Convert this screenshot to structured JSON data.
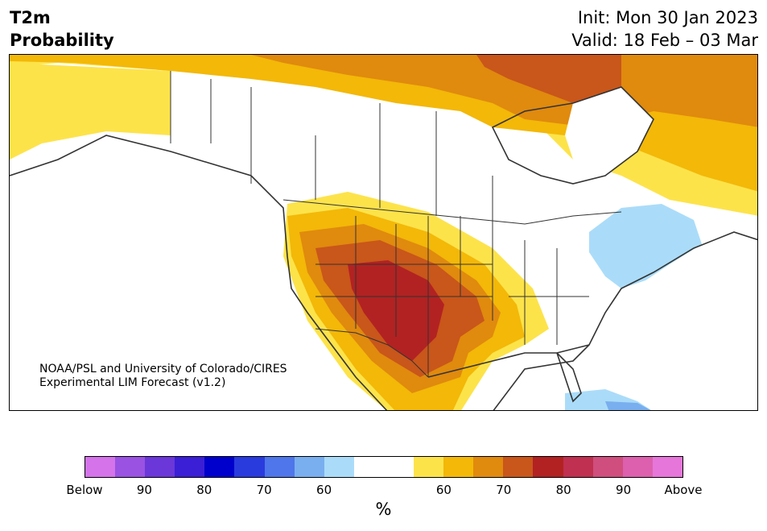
{
  "title": {
    "left_line1": "T2m",
    "left_line2": "Probability",
    "right_line1": "Init: Mon 30 Jan 2023",
    "right_line2": "Valid: 18 Feb – 03 Mar"
  },
  "credit": {
    "line1": "NOAA/PSL and University of Colorado/CIRES",
    "line2": "Experimental LIM Forecast (v1.2)"
  },
  "colorbar": {
    "colors": [
      "#d473ea",
      "#9a52e3",
      "#6b37d9",
      "#3a1fd6",
      "#0000cc",
      "#2a3bde",
      "#4f76ea",
      "#79afef",
      "#aadcf9",
      "#ffffff",
      "#ffffff",
      "#fde34a",
      "#f3b808",
      "#e08a0e",
      "#c9561a",
      "#b22222",
      "#c03050",
      "#cf4e7d",
      "#dc60ad",
      "#e676d9"
    ],
    "tick_labels": [
      "Below",
      "90",
      "80",
      "70",
      "60",
      "60",
      "70",
      "80",
      "90",
      "Above"
    ],
    "unit": "%"
  },
  "map_colors": {
    "p60": "#fde34a",
    "p65": "#f3b808",
    "p70": "#e08a0e",
    "p75": "#c9561a",
    "p80": "#b22222",
    "b60": "#aadcf9",
    "b65": "#79afef",
    "border": "#333333"
  }
}
